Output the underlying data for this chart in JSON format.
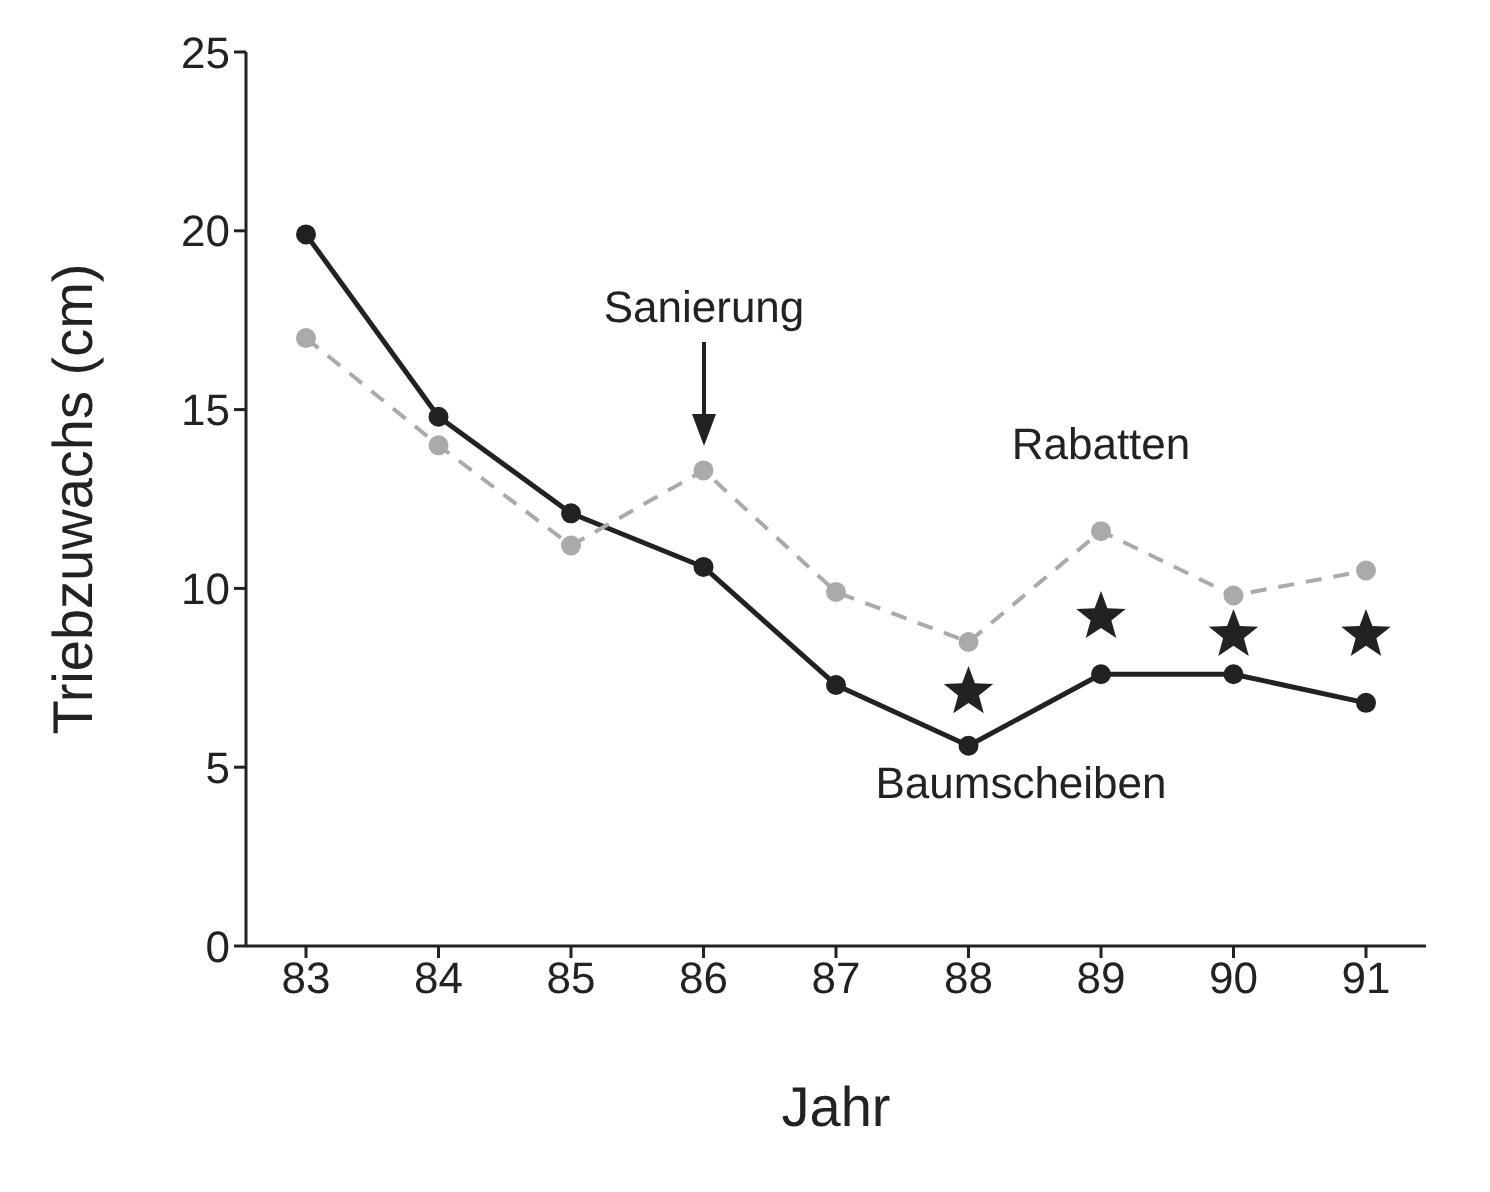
{
  "chart_data": {
    "type": "line",
    "xlabel": "Jahr",
    "ylabel": "Triebzuwachs (cm)",
    "categories": [
      "83",
      "84",
      "85",
      "86",
      "87",
      "88",
      "89",
      "90",
      "91"
    ],
    "ylim": [
      0,
      25
    ],
    "yticks": [
      0,
      5,
      10,
      15,
      20,
      25
    ],
    "grid": false,
    "legend": false,
    "marker": "circle",
    "series": [
      {
        "name": "Baumscheiben",
        "color": "#222222",
        "line_style": "solid",
        "values": [
          19.9,
          14.8,
          12.1,
          10.6,
          7.3,
          5.6,
          7.6,
          7.6,
          6.8
        ]
      },
      {
        "name": "Rabatten",
        "color": "#aaaaaa",
        "line_style": "dashed",
        "values": [
          17.0,
          14.0,
          11.2,
          13.3,
          9.9,
          8.5,
          11.6,
          9.8,
          10.5
        ]
      },
      {
        "type": "scatter",
        "color": "#222222",
        "marker": "star",
        "x": [
          "88",
          "89",
          "90",
          "91"
        ],
        "values": [
          7.1,
          9.2,
          8.7,
          8.7
        ]
      }
    ],
    "annotations": [
      "Sanierung"
    ]
  }
}
